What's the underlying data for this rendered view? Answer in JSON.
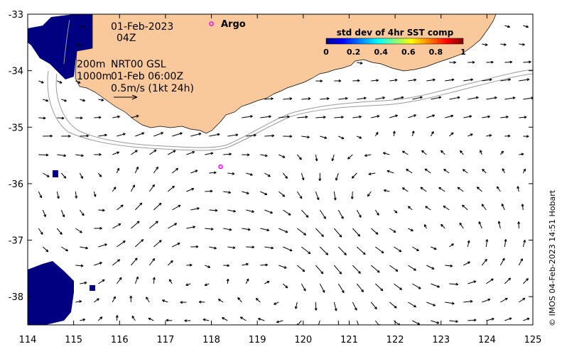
{
  "map": {
    "date_label": "01-Feb-2023",
    "time_label": "04Z",
    "contour_depths": [
      "200m",
      "1000m"
    ],
    "product_label": "NRT00 GSL",
    "product_time": "01-Feb 06:00Z",
    "scale_label": "0.5m/s (1kt 24h)",
    "argo_label": "Argo",
    "credit": "© IMOS 04-Feb-2023 14:51 Hobart",
    "land_color": "#f9c99b",
    "cloud_color": "#000080"
  },
  "colorbar": {
    "title": "std dev of 4hr SST comp",
    "ticks": [
      "0",
      "0.2",
      "0.4",
      "0.6",
      "0.8",
      "1"
    ],
    "colors": [
      "#00008f",
      "#0000ff",
      "#0080ff",
      "#00ffff",
      "#80ff80",
      "#ffff00",
      "#ff8000",
      "#ff0000",
      "#800000"
    ]
  },
  "chart_data": {
    "type": "map",
    "xlim": [
      114,
      125
    ],
    "ylim": [
      -38.5,
      -33
    ],
    "x_ticks": [
      "114",
      "115",
      "116",
      "117",
      "118",
      "119",
      "120",
      "121",
      "122",
      "123",
      "124",
      "125"
    ],
    "y_ticks": [
      "-33",
      "-34",
      "-35",
      "-36",
      "-37",
      "-38"
    ],
    "argo_floats": [
      {
        "lon": 118.0,
        "lat": -33.17
      },
      {
        "lon": 118.2,
        "lat": -35.7
      }
    ]
  }
}
